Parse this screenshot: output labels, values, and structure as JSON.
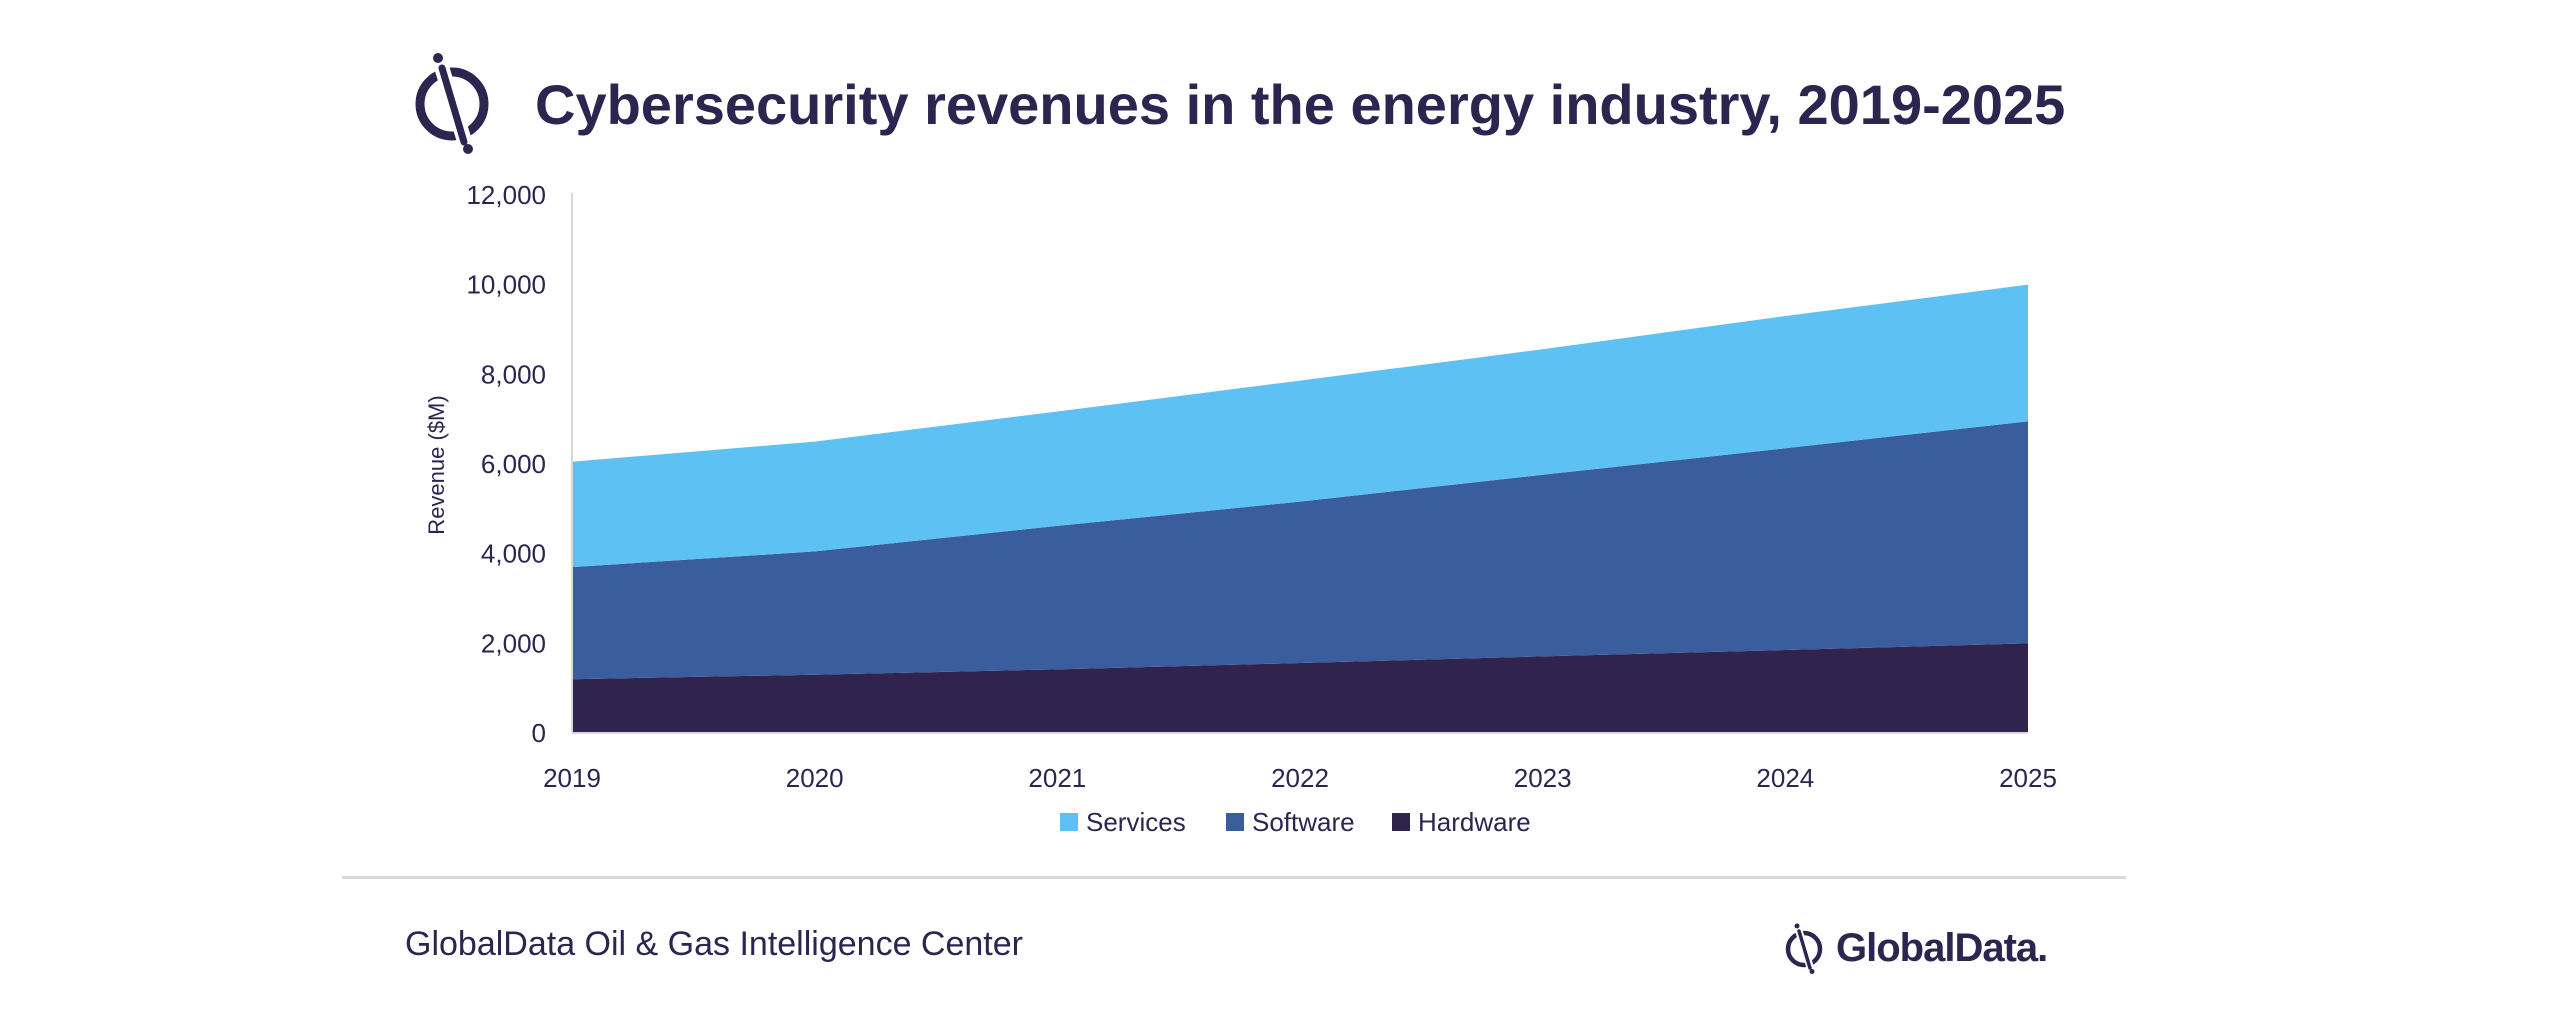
{
  "header": {
    "title": "Cybersecurity revenues in the energy industry, 2019-2025",
    "logo_icon": "globaldata-mark-icon"
  },
  "chart_data": {
    "type": "area",
    "stacked": true,
    "title": "Cybersecurity revenues in the energy industry, 2019-2025",
    "xlabel": "",
    "ylabel": "Revenue ($M)",
    "categories": [
      "2019",
      "2020",
      "2021",
      "2022",
      "2023",
      "2024",
      "2025"
    ],
    "ylim": [
      0,
      12000
    ],
    "yticks": [
      0,
      2000,
      4000,
      6000,
      8000,
      10000,
      12000
    ],
    "ytick_labels": [
      "0",
      "2,000",
      "4,000",
      "6,000",
      "8,000",
      "10,000",
      "12,000"
    ],
    "grid": false,
    "legend_position": "bottom",
    "series": [
      {
        "name": "Hardware",
        "color": "#30234d",
        "values": [
          1200,
          1300,
          1420,
          1560,
          1710,
          1850,
          2000
        ]
      },
      {
        "name": "Software",
        "color": "#3a5d9e",
        "values": [
          2500,
          2750,
          3200,
          3600,
          4050,
          4500,
          4950
        ]
      },
      {
        "name": "Services",
        "color": "#5ec1f4",
        "values": [
          2350,
          2450,
          2550,
          2700,
          2800,
          2950,
          3050
        ]
      }
    ],
    "legend_order": [
      "Services",
      "Software",
      "Hardware"
    ]
  },
  "footer": {
    "source": "GlobalData Oil & Gas Intelligence Center",
    "brand_name": "GlobalData."
  }
}
